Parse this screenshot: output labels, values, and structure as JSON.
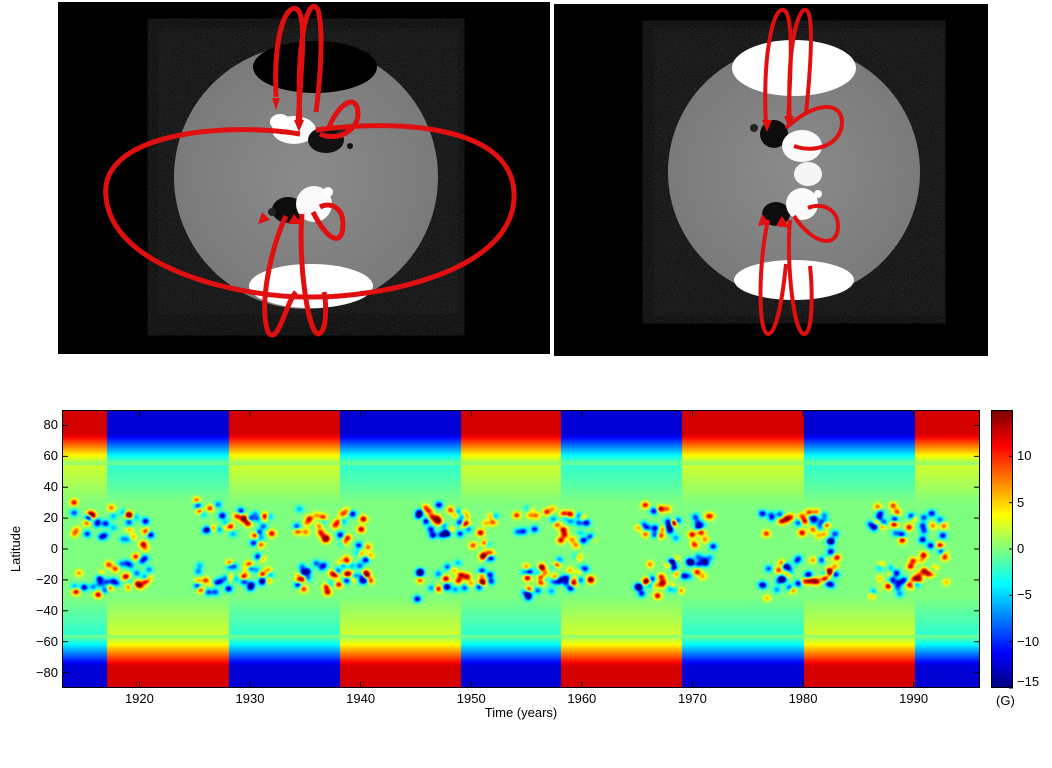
{
  "figure": {
    "top_panels": [
      {
        "name": "left-panel",
        "description_icon": "sun-magnetogram-with-global-dipole-loops"
      },
      {
        "name": "right-panel",
        "description_icon": "sun-magnetogram-with-local-loops"
      }
    ]
  },
  "chart_data": {
    "type": "heatmap",
    "title": "",
    "xlabel": "Time (years)",
    "ylabel": "Latitude",
    "colorbar_unit": "(G)",
    "xlim": [
      1913,
      1996
    ],
    "ylim": [
      -90,
      90
    ],
    "xticks": [
      1920,
      1930,
      1940,
      1950,
      1960,
      1970,
      1980,
      1990
    ],
    "yticks": [
      80,
      60,
      40,
      20,
      0,
      -20,
      -40,
      -60,
      -80
    ],
    "colorbar_range": [
      -15,
      15
    ],
    "colorbar_ticks": [
      10,
      5,
      0,
      -5,
      -10,
      -15
    ],
    "colormap": "jet",
    "polar_field_reversals": [
      1917,
      1928,
      1938,
      1949,
      1958,
      1969,
      1980,
      1990
    ],
    "north_pole_sign_start": 1,
    "cycle_maxima": [
      1917,
      1928,
      1937,
      1948,
      1957,
      1968,
      1979,
      1989
    ]
  }
}
